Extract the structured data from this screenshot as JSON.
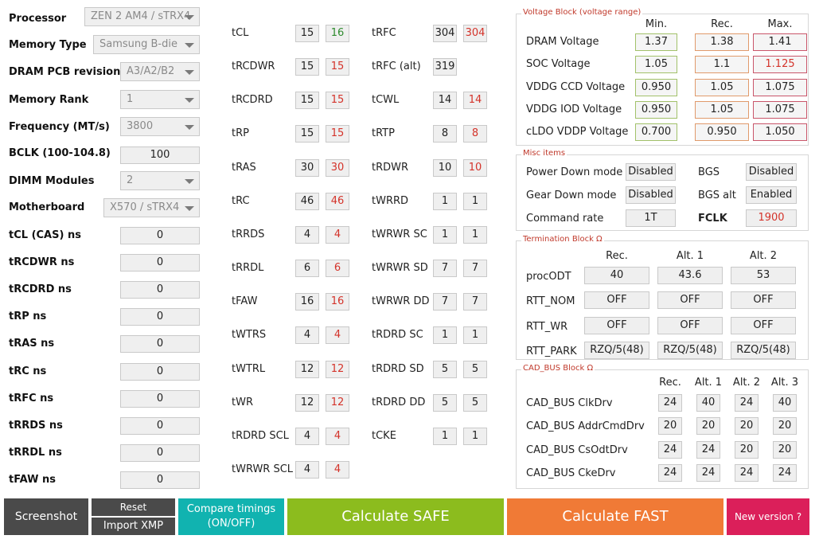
{
  "left_panel": {
    "processor": {
      "label": "Processor",
      "value": "ZEN 2 AM4 / sTRX4"
    },
    "memory_type": {
      "label": "Memory Type",
      "value": "Samsung B-die"
    },
    "dram_pcb": {
      "label": "DRAM PCB revision",
      "value": "A3/A2/B2"
    },
    "memory_rank": {
      "label": "Memory Rank",
      "value": "1"
    },
    "frequency": {
      "label": "Frequency (MT/s)",
      "value": "3800"
    },
    "bclk": {
      "label": "BCLK (100-104.8)",
      "value": "100"
    },
    "dimm_modules": {
      "label": "DIMM Modules",
      "value": "2"
    },
    "motherboard": {
      "label": "Motherboard",
      "value": "X570 / sTRX4"
    },
    "ns": [
      {
        "label": "tCL (CAS) ns",
        "value": "0"
      },
      {
        "label": "tRCDWR ns",
        "value": "0"
      },
      {
        "label": "tRCDRD ns",
        "value": "0"
      },
      {
        "label": "tRP ns",
        "value": "0"
      },
      {
        "label": "tRAS ns",
        "value": "0"
      },
      {
        "label": "tRC ns",
        "value": "0"
      },
      {
        "label": "tRFC ns",
        "value": "0"
      },
      {
        "label": "tRRDS ns",
        "value": "0"
      },
      {
        "label": "tRRDL ns",
        "value": "0"
      },
      {
        "label": "tFAW ns",
        "value": "0"
      }
    ]
  },
  "timings_col1": [
    {
      "label": "tCL",
      "a": "15",
      "b": "16"
    },
    {
      "label": "tRCDWR",
      "a": "15",
      "b": "15"
    },
    {
      "label": "tRCDRD",
      "a": "15",
      "b": "15"
    },
    {
      "label": "tRP",
      "a": "15",
      "b": "15"
    },
    {
      "label": "tRAS",
      "a": "30",
      "b": "30"
    },
    {
      "label": "tRC",
      "a": "46",
      "b": "46"
    },
    {
      "label": "tRRDS",
      "a": "4",
      "b": "4"
    },
    {
      "label": "tRRDL",
      "a": "6",
      "b": "6"
    },
    {
      "label": "tFAW",
      "a": "16",
      "b": "16"
    },
    {
      "label": "tWTRS",
      "a": "4",
      "b": "4"
    },
    {
      "label": "tWTRL",
      "a": "12",
      "b": "12"
    },
    {
      "label": "tWR",
      "a": "12",
      "b": "12"
    },
    {
      "label": "tRDRD SCL",
      "a": "4",
      "b": "4"
    },
    {
      "label": "tWRWR SCL",
      "a": "4",
      "b": "4"
    }
  ],
  "timings_col2": [
    {
      "label": "tRFC",
      "a": "304",
      "b": "304"
    },
    {
      "label": "tRFC (alt)",
      "a": "319",
      "b": ""
    },
    {
      "label": "tCWL",
      "a": "14",
      "b": "14"
    },
    {
      "label": "tRTP",
      "a": "8",
      "b": "8"
    },
    {
      "label": "tRDWR",
      "a": "10",
      "b": "10"
    },
    {
      "label": "tWRRD",
      "a": "1",
      "b": "1"
    },
    {
      "label": "tWRWR SC",
      "a": "1",
      "b": "1"
    },
    {
      "label": "tWRWR SD",
      "a": "7",
      "b": "7"
    },
    {
      "label": "tWRWR DD",
      "a": "7",
      "b": "7"
    },
    {
      "label": "tRDRD SC",
      "a": "1",
      "b": "1"
    },
    {
      "label": "tRDRD SD",
      "a": "5",
      "b": "5"
    },
    {
      "label": "tRDRD DD",
      "a": "5",
      "b": "5"
    },
    {
      "label": "tCKE",
      "a": "1",
      "b": "1"
    }
  ],
  "voltage": {
    "title": "Voltage Block (voltage range)",
    "headers": [
      "Min.",
      "Rec.",
      "Max."
    ],
    "rows": [
      {
        "label": "DRAM Voltage",
        "min": "1.37",
        "rec": "1.38",
        "max": "1.41"
      },
      {
        "label": "SOC Voltage",
        "min": "1.05",
        "rec": "1.1",
        "max": "1.125"
      },
      {
        "label": "VDDG  CCD Voltage",
        "min": "0.950",
        "rec": "1.05",
        "max": "1.075"
      },
      {
        "label": "VDDG  IOD Voltage",
        "min": "0.950",
        "rec": "1.05",
        "max": "1.075"
      },
      {
        "label": "cLDO VDDP Voltage",
        "min": "0.700",
        "rec": "0.950",
        "max": "1.050"
      }
    ]
  },
  "misc": {
    "title": "Misc items",
    "power_down": {
      "label": "Power Down mode",
      "value": "Disabled"
    },
    "gear_down": {
      "label": "Gear Down mode",
      "value": "Disabled"
    },
    "command_rate": {
      "label": "Command rate",
      "value": "1T"
    },
    "bgs": {
      "label": "BGS",
      "value": "Disabled"
    },
    "bgs_alt": {
      "label": "BGS alt",
      "value": "Enabled"
    },
    "fclk": {
      "label": "FCLK",
      "value": "1900"
    }
  },
  "termination": {
    "title": "Termination Block Ω",
    "headers": [
      "Rec.",
      "Alt. 1",
      "Alt. 2"
    ],
    "rows": [
      {
        "label": "procODT",
        "v": [
          "40",
          "43.6",
          "53"
        ]
      },
      {
        "label": "RTT_NOM",
        "v": [
          "OFF",
          "OFF",
          "OFF"
        ]
      },
      {
        "label": "RTT_WR",
        "v": [
          "OFF",
          "OFF",
          "OFF"
        ]
      },
      {
        "label": "RTT_PARK",
        "v": [
          "RZQ/5(48)",
          "RZQ/5(48)",
          "RZQ/5(48)"
        ]
      }
    ]
  },
  "cadbus": {
    "title": "CAD_BUS Block Ω",
    "headers": [
      "Rec.",
      "Alt. 1",
      "Alt. 2",
      "Alt. 3"
    ],
    "rows": [
      {
        "label": "CAD_BUS ClkDrv",
        "v": [
          "24",
          "40",
          "24",
          "40"
        ]
      },
      {
        "label": "CAD_BUS AddrCmdDrv",
        "v": [
          "20",
          "20",
          "20",
          "20"
        ]
      },
      {
        "label": "CAD_BUS CsOdtDrv",
        "v": [
          "24",
          "24",
          "20",
          "20"
        ]
      },
      {
        "label": "CAD_BUS CkeDrv",
        "v": [
          "24",
          "24",
          "24",
          "24"
        ]
      }
    ]
  },
  "buttons": {
    "screenshot": "Screenshot",
    "reset": "Reset",
    "import_xmp": "Import XMP",
    "compare_line1": "Compare timings",
    "compare_line2": "(ON/OFF)",
    "calc_safe": "Calculate SAFE",
    "calc_fast": "Calculate FAST",
    "new_version": "New version ?"
  },
  "colors": {
    "red_text": "#d4332a",
    "green_text": "#2e8b2e",
    "btn_dark": "#4a4a4a",
    "btn_teal": "#11b3b0",
    "btn_green": "#8cbc1e",
    "btn_orange": "#f07a36",
    "btn_pink": "#db1f5a"
  }
}
